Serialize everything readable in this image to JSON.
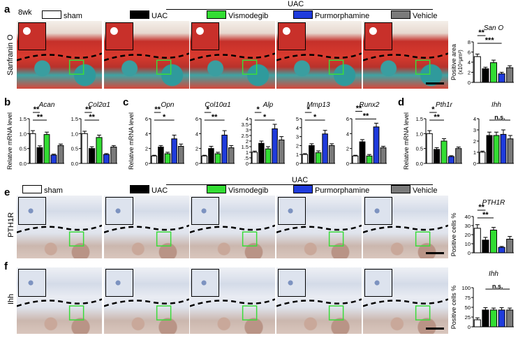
{
  "panel_letters": {
    "a": "a",
    "b": "b",
    "c": "c",
    "d": "d",
    "e": "e",
    "f": "f"
  },
  "legend": {
    "uac_header": "UAC",
    "items": [
      {
        "label": "sham",
        "color": "#ffffff"
      },
      {
        "label": "UAC",
        "color": "#000000"
      },
      {
        "label": "Vismodegib",
        "color": "#33dd33"
      },
      {
        "label": "Purmorphamine",
        "color": "#1f3bdc"
      },
      {
        "label": "Vehicle",
        "color": "#7a7a7a"
      }
    ]
  },
  "row_labels": {
    "a_age": "8wk",
    "a_stain": "Sanfranin O",
    "e_stain": "PTH1R",
    "f_stain": "Ihh"
  },
  "colors": {
    "sham": "#ffffff",
    "uac": "#000000",
    "vismodegib": "#33dd33",
    "purmorphamine": "#1f3bdc",
    "vehicle": "#7a7a7a"
  },
  "chart_data": [
    {
      "id": "a_sanO",
      "type": "bar",
      "title": "San O",
      "ylabel": "Positive area",
      "ylabel2": "(x10⁴μm²)",
      "ylim": [
        0,
        8
      ],
      "yticks": [
        "0",
        "2",
        "4",
        "6",
        "8"
      ],
      "values": [
        5.1,
        2.7,
        3.9,
        1.7,
        2.9
      ],
      "errors": [
        0.5,
        0.3,
        0.5,
        0.3,
        0.4
      ],
      "sig": [
        {
          "text": "***",
          "from": 0,
          "to": 3
        },
        {
          "text": "**",
          "from": 0,
          "to": 1
        }
      ]
    },
    {
      "id": "b_acan",
      "type": "bar",
      "title": "Acan",
      "ylabel": "Relative mRNA level",
      "ylim": [
        0,
        1.5
      ],
      "yticks": [
        "0.0",
        "0.5",
        "1.0",
        "1.5"
      ],
      "values": [
        1.0,
        0.53,
        0.97,
        0.28,
        0.6
      ],
      "errors": [
        0.1,
        0.06,
        0.08,
        0.03,
        0.05
      ],
      "sig": [
        {
          "text": "**",
          "from": 0,
          "to": 2
        },
        {
          "text": "**",
          "from": 0,
          "to": 1
        }
      ]
    },
    {
      "id": "b_col2",
      "type": "bar",
      "title": "Col2α1",
      "ylabel": "",
      "ylim": [
        0,
        1.5
      ],
      "yticks": [
        "0.0",
        "0.5",
        "1.0",
        "1.5"
      ],
      "values": [
        1.0,
        0.5,
        0.87,
        0.3,
        0.55
      ],
      "errors": [
        0.08,
        0.06,
        0.08,
        0.03,
        0.05
      ],
      "sig": [
        {
          "text": "**",
          "from": 0,
          "to": 2
        },
        {
          "text": "**",
          "from": 0,
          "to": 1
        }
      ]
    },
    {
      "id": "c_opn",
      "type": "bar",
      "title": "Opn",
      "ylabel": "Relative mRNA level",
      "ylim": [
        0,
        6
      ],
      "yticks": [
        "0",
        "2",
        "4",
        "6"
      ],
      "values": [
        1.0,
        2.2,
        1.3,
        3.3,
        2.3
      ],
      "errors": [
        0.1,
        0.2,
        0.2,
        0.5,
        0.3
      ],
      "sig": [
        {
          "text": "*",
          "from": 0,
          "to": 3
        },
        {
          "text": "**",
          "from": 0,
          "to": 1
        }
      ]
    },
    {
      "id": "c_col10",
      "type": "bar",
      "title": "Col10α1",
      "ylabel": "",
      "ylim": [
        0,
        6
      ],
      "yticks": [
        "0",
        "2",
        "4",
        "6"
      ],
      "values": [
        1.0,
        2.0,
        1.3,
        3.8,
        2.1
      ],
      "errors": [
        0.1,
        0.3,
        0.2,
        0.6,
        0.3
      ],
      "sig": [
        {
          "text": "**",
          "from": 0,
          "to": 3
        },
        {
          "text": "*",
          "from": 0,
          "to": 1
        }
      ]
    },
    {
      "id": "c_alp",
      "type": "bar",
      "title": "Alp",
      "ylabel": "",
      "ylim": [
        0,
        4
      ],
      "yticks": [
        "0",
        ".5",
        "1",
        "1.5",
        "2",
        "2.5",
        "3",
        "3.5",
        "4"
      ],
      "values": [
        1.0,
        1.8,
        1.3,
        3.1,
        2.1
      ],
      "errors": [
        0.1,
        0.2,
        0.2,
        0.4,
        0.3
      ],
      "sig": [
        {
          "text": "*",
          "from": 0,
          "to": 3
        },
        {
          "text": "*",
          "from": 0,
          "to": 1
        }
      ]
    },
    {
      "id": "c_mmp13",
      "type": "bar",
      "title": "Mmp13",
      "ylabel": "",
      "ylim": [
        0,
        5
      ],
      "yticks": [
        "0",
        "1",
        "2",
        "3",
        "4",
        "5"
      ],
      "values": [
        1.0,
        2.0,
        1.2,
        3.3,
        2.0
      ],
      "errors": [
        0.1,
        0.2,
        0.2,
        0.4,
        0.2
      ],
      "sig": [
        {
          "text": "*",
          "from": 0,
          "to": 3
        },
        {
          "text": "*",
          "from": 0,
          "to": 1
        }
      ]
    },
    {
      "id": "c_runx2",
      "type": "bar",
      "title": "Runx2",
      "ylabel": "",
      "ylim": [
        0,
        6
      ],
      "yticks": [
        "0",
        "2",
        "4",
        "6"
      ],
      "values": [
        1.0,
        2.9,
        1.0,
        4.9,
        2.1
      ],
      "errors": [
        0.1,
        0.3,
        0.2,
        0.5,
        0.2
      ],
      "sig": [
        {
          "text": "**",
          "from": 0,
          "to": 3
        },
        {
          "text": "**",
          "from": 0,
          "to": 1
        }
      ]
    },
    {
      "id": "d_pth1r",
      "type": "bar",
      "title": "Pth1r",
      "ylabel": "Relative mRNA level",
      "ylim": [
        0,
        1.5
      ],
      "yticks": [
        "0.0",
        "0.5",
        "1.0",
        "1.5"
      ],
      "values": [
        1.0,
        0.47,
        0.75,
        0.23,
        0.5
      ],
      "errors": [
        0.1,
        0.06,
        0.08,
        0.03,
        0.05
      ],
      "sig": [
        {
          "text": "**",
          "from": 0,
          "to": 2
        },
        {
          "text": "*",
          "from": 0,
          "to": 1
        }
      ]
    },
    {
      "id": "d_ihh",
      "type": "bar",
      "title": "Ihh",
      "ylabel": "",
      "ylim": [
        0,
        4
      ],
      "yticks": [
        "0",
        "1",
        "2",
        "3",
        "4"
      ],
      "values": [
        1.0,
        2.5,
        2.5,
        2.6,
        2.2
      ],
      "errors": [
        0.1,
        0.3,
        0.3,
        0.4,
        0.3
      ],
      "sig": [
        {
          "text": "n.s.",
          "from": 1,
          "to": 4
        }
      ]
    },
    {
      "id": "e_pth1r",
      "type": "bar",
      "title": "PTH1R",
      "ylabel": "Positive cells %",
      "ylim": [
        0,
        40
      ],
      "yticks": [
        "0",
        "10",
        "20",
        "30",
        "40"
      ],
      "values": [
        27,
        14,
        25,
        6,
        15
      ],
      "errors": [
        4,
        3,
        3,
        1,
        3
      ],
      "sig": [
        {
          "text": "**",
          "from": 0,
          "to": 2
        },
        {
          "text": "**",
          "from": 0,
          "to": 1
        }
      ]
    },
    {
      "id": "f_ihh",
      "type": "bar",
      "title": "Ihh",
      "ylabel": "Positive cells %",
      "ylim": [
        0,
        100
      ],
      "yticks": [
        "0",
        "25",
        "50",
        "75",
        "100"
      ],
      "values": [
        18,
        43,
        43,
        43,
        43
      ],
      "errors": [
        5,
        6,
        5,
        6,
        5
      ],
      "sig": [
        {
          "text": "n.s.",
          "from": 1,
          "to": 4
        }
      ]
    }
  ]
}
